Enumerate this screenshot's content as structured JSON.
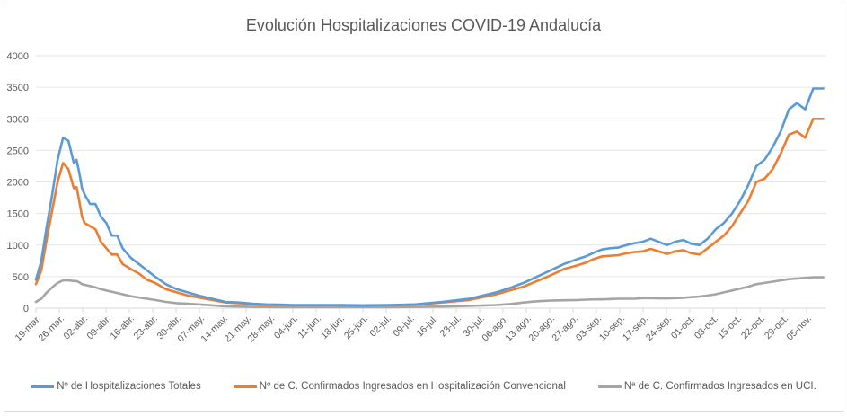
{
  "chart_data": {
    "type": "line",
    "title": "Evolución Hospitalizaciones COVID-19 Andalucía",
    "xlabel": "",
    "ylabel": "",
    "ylim": [
      0,
      4000
    ],
    "yticks": [
      "0",
      "500",
      "1000",
      "1500",
      "2000",
      "2500",
      "3000",
      "3500",
      "4000"
    ],
    "grid": true,
    "legend_position": "bottom",
    "x_tick_labels": [
      "19-mar.",
      "26-mar.",
      "02-abr.",
      "09-abr.",
      "16-abr.",
      "23-abr.",
      "30-abr.",
      "07-may.",
      "14-may.",
      "21-may.",
      "28-may.",
      "04-jun.",
      "11-jun.",
      "18-jun.",
      "25-jun.",
      "02-jul.",
      "09-jul.",
      "16-jul.",
      "23-jul.",
      "30-jul.",
      "06-ago.",
      "13-ago.",
      "20-ago.",
      "27-ago.",
      "03-sep.",
      "10-sep.",
      "17-sep.",
      "24-sep.",
      "01-oct.",
      "08-oct.",
      "15-oct.",
      "22-oct.",
      "29-oct.",
      "05-nov."
    ],
    "x_days": [
      0,
      2,
      4,
      6,
      8,
      10,
      12,
      14,
      15,
      16,
      17,
      18,
      20,
      22,
      24,
      26,
      28,
      30,
      32,
      35,
      38,
      41,
      44,
      48,
      52,
      56,
      60,
      65,
      70,
      75,
      80,
      85,
      90,
      95,
      100,
      110,
      120,
      130,
      140,
      150,
      160,
      170,
      175,
      180,
      185,
      190,
      195,
      200,
      203,
      206,
      209,
      212,
      215,
      218,
      221,
      224,
      227,
      230,
      233,
      236,
      239,
      242,
      245,
      248,
      251,
      254,
      257,
      260,
      263,
      266,
      269,
      272,
      275,
      278,
      281,
      284,
      287,
      590
    ],
    "series": [
      {
        "name": "Nº de Hospitalizaciones Totales",
        "color": "#5b9bd5",
        "values": [
          450,
          750,
          1300,
          1800,
          2350,
          2700,
          2650,
          2300,
          2350,
          2150,
          1900,
          1800,
          1650,
          1650,
          1450,
          1350,
          1150,
          1150,
          950,
          800,
          700,
          600,
          500,
          380,
          300,
          250,
          200,
          150,
          100,
          90,
          70,
          60,
          55,
          50,
          50,
          50,
          45,
          50,
          60,
          100,
          150,
          250,
          320,
          400,
          500,
          600,
          700,
          780,
          820,
          880,
          930,
          950,
          960,
          1000,
          1030,
          1050,
          1100,
          1050,
          1000,
          1050,
          1080,
          1020,
          1000,
          1100,
          1250,
          1350,
          1500,
          1700,
          1950,
          2250,
          2350,
          2550,
          2800,
          3150,
          3250,
          3150,
          3480,
          3480
        ]
      },
      {
        "name": "Nº de C. Confirmados Ingresados en Hospitalización Convencional",
        "color": "#ed7d31",
        "values": [
          380,
          600,
          1100,
          1550,
          2000,
          2300,
          2200,
          1900,
          1920,
          1700,
          1450,
          1350,
          1300,
          1250,
          1050,
          950,
          850,
          850,
          700,
          620,
          550,
          450,
          400,
          300,
          250,
          200,
          170,
          130,
          90,
          80,
          60,
          50,
          50,
          45,
          45,
          45,
          40,
          45,
          55,
          90,
          130,
          220,
          280,
          340,
          430,
          520,
          620,
          680,
          720,
          780,
          820,
          830,
          840,
          870,
          890,
          900,
          940,
          900,
          860,
          900,
          920,
          870,
          850,
          950,
          1050,
          1150,
          1300,
          1500,
          1700,
          2000,
          2050,
          2200,
          2450,
          2750,
          2800,
          2700,
          3000,
          3000
        ]
      },
      {
        "name": "Nª de C. Confirmados Ingresados en UCI.",
        "color": "#a5a5a5",
        "values": [
          100,
          150,
          250,
          330,
          400,
          440,
          440,
          430,
          430,
          410,
          380,
          370,
          350,
          330,
          300,
          280,
          260,
          240,
          220,
          190,
          170,
          150,
          130,
          100,
          80,
          70,
          60,
          45,
          30,
          25,
          20,
          18,
          15,
          15,
          15,
          15,
          15,
          15,
          20,
          25,
          35,
          50,
          65,
          90,
          110,
          120,
          125,
          130,
          135,
          140,
          140,
          145,
          150,
          150,
          150,
          160,
          160,
          155,
          155,
          160,
          165,
          175,
          185,
          200,
          220,
          250,
          280,
          310,
          340,
          380,
          400,
          420,
          440,
          460,
          470,
          480,
          490,
          490
        ]
      }
    ]
  },
  "legend": {
    "items": [
      {
        "label": "Nº de Hospitalizaciones Totales",
        "color": "#5b9bd5"
      },
      {
        "label": "Nº de C. Confirmados Ingresados en Hospitalización Convencional",
        "color": "#ed7d31"
      },
      {
        "label": "Nª de C. Confirmados Ingresados en UCI.",
        "color": "#a5a5a5"
      }
    ]
  }
}
